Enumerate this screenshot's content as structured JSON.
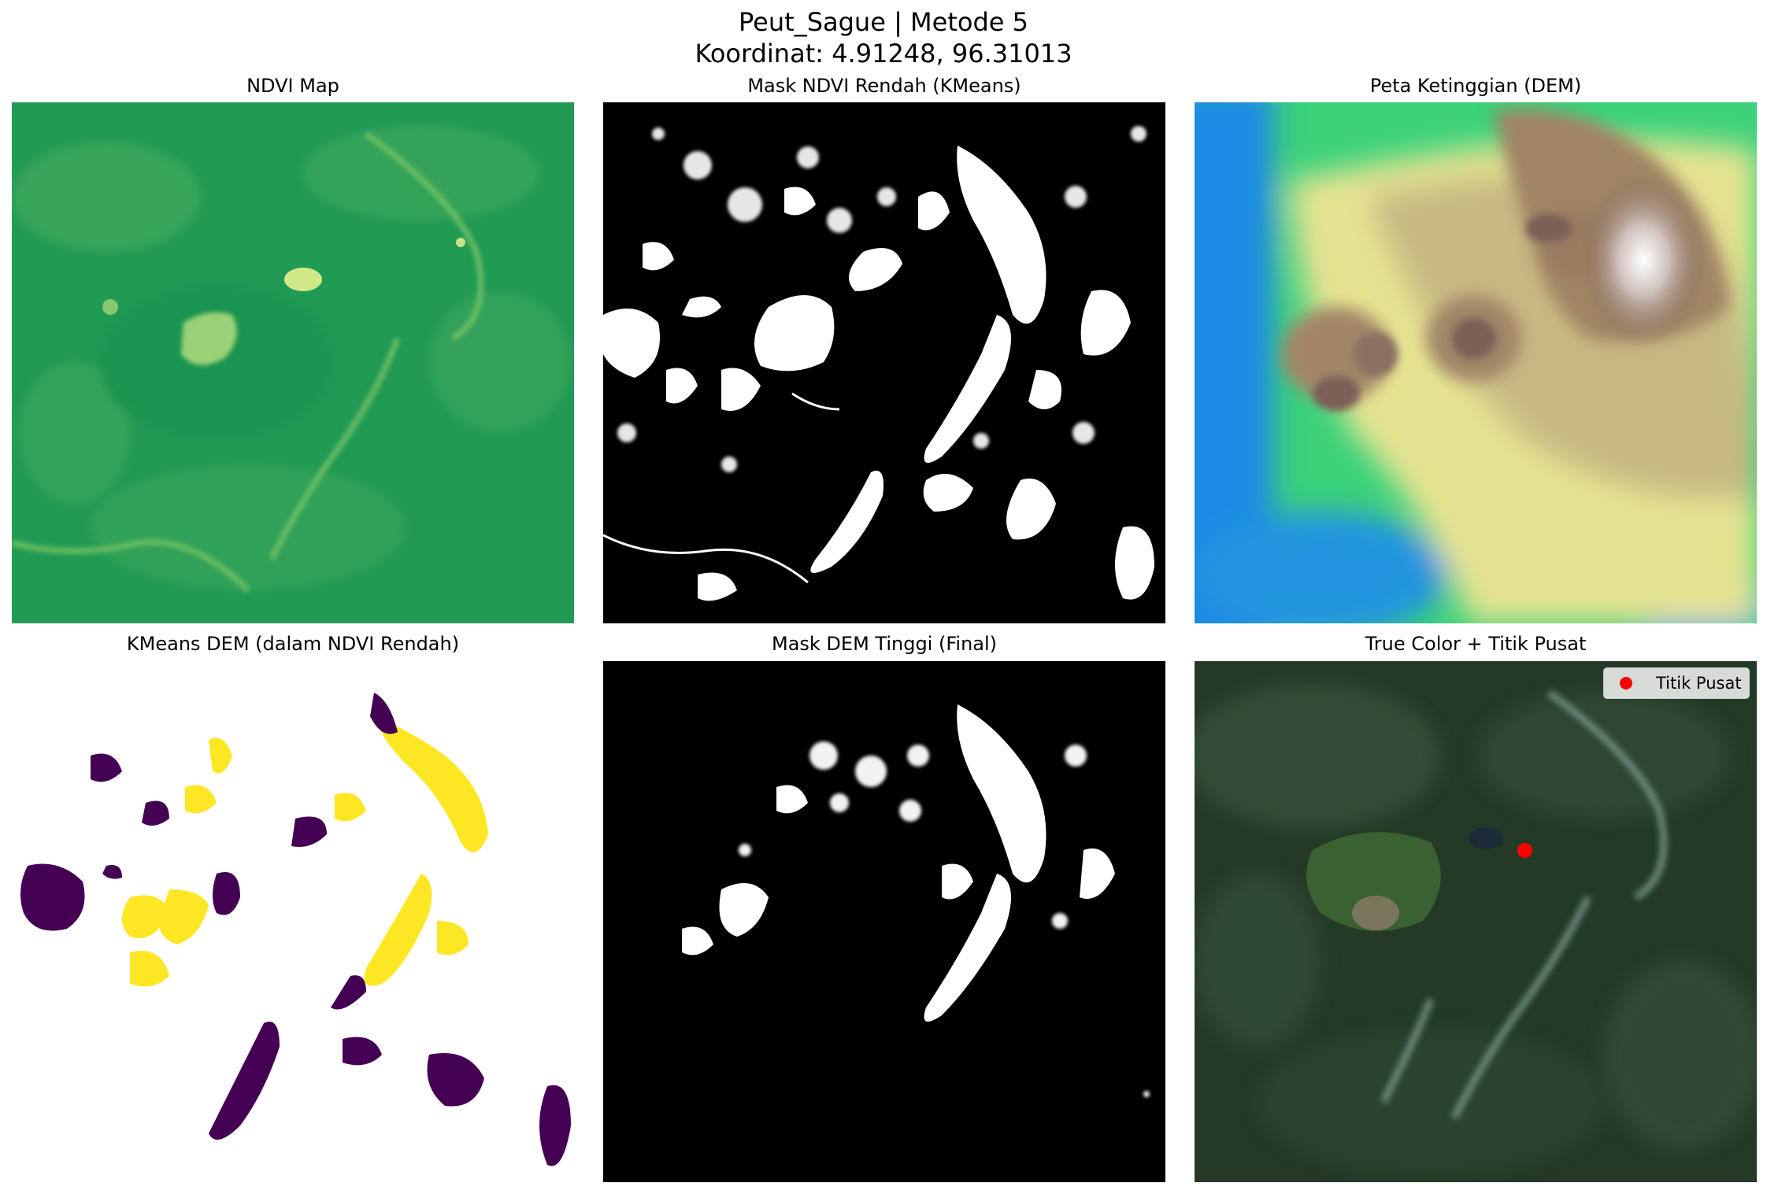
{
  "figure": {
    "title_line1": "Peut_Sague | Metode 5",
    "title_line2": "Koordinat: 4.91248, 96.31013"
  },
  "panels": [
    {
      "title": "NDVI Map",
      "colormap": "summer",
      "accent": "#1f9a52"
    },
    {
      "title": "Mask NDVI Rendah (KMeans)",
      "colormap": "binary",
      "accent": "#000000"
    },
    {
      "title": "Peta Ketinggian (DEM)",
      "colormap": "terrain",
      "accent": "#a08464"
    },
    {
      "title": "KMeans DEM (dalam NDVI Rendah)",
      "colormap": "viridis",
      "accent": "#f5dd1a"
    },
    {
      "title": "Mask DEM Tinggi (Final)",
      "colormap": "binary",
      "accent": "#000000"
    },
    {
      "title": "True Color + Titik Pusat",
      "colormap": "rgb",
      "accent": "#263c28"
    }
  ],
  "legend": {
    "label": "Titik Pusat",
    "marker_color": "#ff0000"
  }
}
